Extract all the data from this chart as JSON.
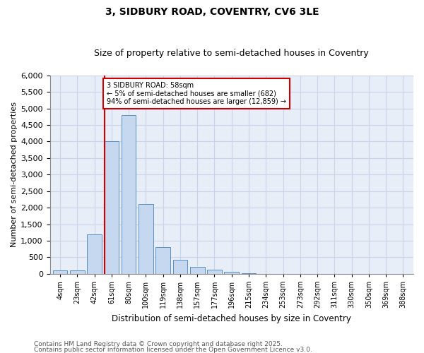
{
  "title_line1": "3, SIDBURY ROAD, COVENTRY, CV6 3LE",
  "title_line2": "Size of property relative to semi-detached houses in Coventry",
  "xlabel": "Distribution of semi-detached houses by size in Coventry",
  "ylabel": "Number of semi-detached properties",
  "categories": [
    "4sqm",
    "23sqm",
    "42sqm",
    "61sqm",
    "80sqm",
    "100sqm",
    "119sqm",
    "138sqm",
    "157sqm",
    "177sqm",
    "196sqm",
    "215sqm",
    "234sqm",
    "253sqm",
    "273sqm",
    "292sqm",
    "311sqm",
    "330sqm",
    "350sqm",
    "369sqm",
    "388sqm"
  ],
  "values": [
    100,
    100,
    1200,
    4000,
    4800,
    2100,
    800,
    420,
    210,
    130,
    50,
    15,
    5,
    2,
    1,
    0,
    0,
    0,
    0,
    0,
    0
  ],
  "bar_color": "#c5d8ef",
  "bar_edge_color": "#5a8fc0",
  "vline_color": "#cc0000",
  "annotation_text": "3 SIDBURY ROAD: 58sqm\n← 5% of semi-detached houses are smaller (682)\n94% of semi-detached houses are larger (12,859) →",
  "annotation_box_color": "#cc0000",
  "ylim": [
    0,
    6000
  ],
  "yticks": [
    0,
    500,
    1000,
    1500,
    2000,
    2500,
    3000,
    3500,
    4000,
    4500,
    5000,
    5500,
    6000
  ],
  "grid_color": "#c8d4e8",
  "bg_color": "#e8eef8",
  "footer_line1": "Contains HM Land Registry data © Crown copyright and database right 2025.",
  "footer_line2": "Contains public sector information licensed under the Open Government Licence v3.0.",
  "title_fontsize": 10,
  "subtitle_fontsize": 9,
  "footer_fontsize": 6.5
}
